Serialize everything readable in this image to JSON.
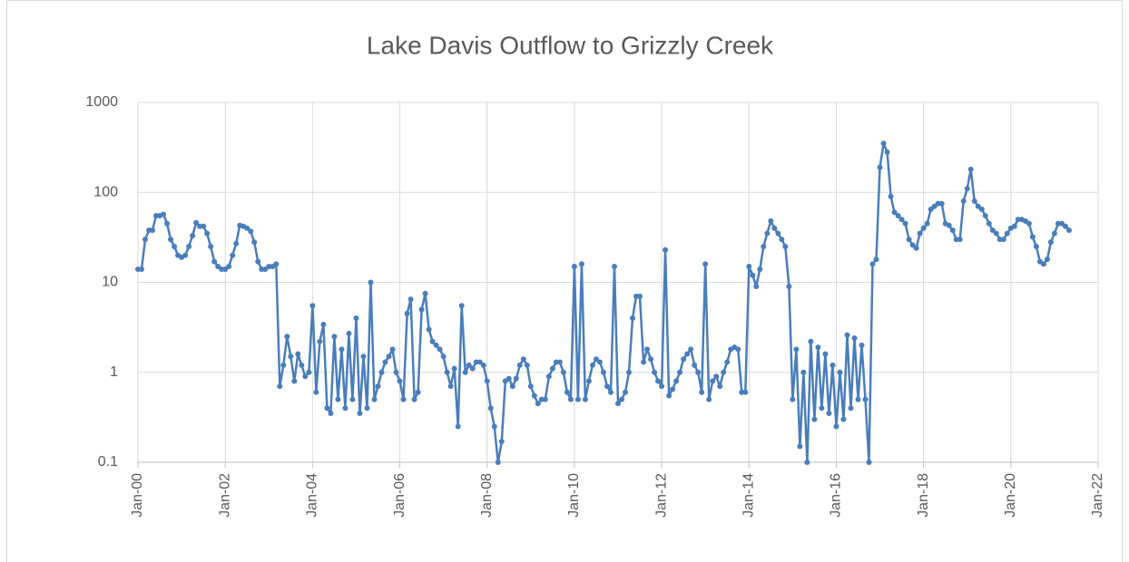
{
  "chart_data": {
    "type": "line",
    "title": "Lake Davis Outflow to Grizzly Creek",
    "log_scale": true,
    "grid": true,
    "color": "#4a7ebb",
    "xlim": [
      "2000-01",
      "2022-01"
    ],
    "xticks": [
      {
        "value": "2000-01",
        "label": "Jan-00"
      },
      {
        "value": "2002-01",
        "label": "Jan-02"
      },
      {
        "value": "2004-01",
        "label": "Jan-04"
      },
      {
        "value": "2006-01",
        "label": "Jan-06"
      },
      {
        "value": "2008-01",
        "label": "Jan-08"
      },
      {
        "value": "2010-01",
        "label": "Jan-10"
      },
      {
        "value": "2012-01",
        "label": "Jan-12"
      },
      {
        "value": "2014-01",
        "label": "Jan-14"
      },
      {
        "value": "2016-01",
        "label": "Jan-16"
      },
      {
        "value": "2018-01",
        "label": "Jan-18"
      },
      {
        "value": "2020-01",
        "label": "Jan-20"
      },
      {
        "value": "2022-01",
        "label": "Jan-22"
      }
    ],
    "ylim": [
      0.1,
      1000
    ],
    "yticks": [
      0.1,
      1,
      10,
      100,
      1000
    ],
    "x": [
      "2000-01",
      "2000-02",
      "2000-03",
      "2000-04",
      "2000-05",
      "2000-06",
      "2000-07",
      "2000-08",
      "2000-09",
      "2000-10",
      "2000-11",
      "2000-12",
      "2001-01",
      "2001-02",
      "2001-03",
      "2001-04",
      "2001-05",
      "2001-06",
      "2001-07",
      "2001-08",
      "2001-09",
      "2001-10",
      "2001-11",
      "2001-12",
      "2002-01",
      "2002-02",
      "2002-03",
      "2002-04",
      "2002-05",
      "2002-06",
      "2002-07",
      "2002-08",
      "2002-09",
      "2002-10",
      "2002-11",
      "2002-12",
      "2003-01",
      "2003-02",
      "2003-03",
      "2003-04",
      "2003-05",
      "2003-06",
      "2003-07",
      "2003-08",
      "2003-09",
      "2003-10",
      "2003-11",
      "2003-12",
      "2004-01",
      "2004-02",
      "2004-03",
      "2004-04",
      "2004-05",
      "2004-06",
      "2004-07",
      "2004-08",
      "2004-09",
      "2004-10",
      "2004-11",
      "2004-12",
      "2005-01",
      "2005-02",
      "2005-03",
      "2005-04",
      "2005-05",
      "2005-06",
      "2005-07",
      "2005-08",
      "2005-09",
      "2005-10",
      "2005-11",
      "2005-12",
      "2006-01",
      "2006-02",
      "2006-03",
      "2006-04",
      "2006-05",
      "2006-06",
      "2006-07",
      "2006-08",
      "2006-09",
      "2006-10",
      "2006-11",
      "2006-12",
      "2007-01",
      "2007-02",
      "2007-03",
      "2007-04",
      "2007-05",
      "2007-06",
      "2007-07",
      "2007-08",
      "2007-09",
      "2007-10",
      "2007-11",
      "2007-12",
      "2008-01",
      "2008-02",
      "2008-03",
      "2008-04",
      "2008-05",
      "2008-06",
      "2008-07",
      "2008-08",
      "2008-09",
      "2008-10",
      "2008-11",
      "2008-12",
      "2009-01",
      "2009-02",
      "2009-03",
      "2009-04",
      "2009-05",
      "2009-06",
      "2009-07",
      "2009-08",
      "2009-09",
      "2009-10",
      "2009-11",
      "2009-12",
      "2010-01",
      "2010-02",
      "2010-03",
      "2010-04",
      "2010-05",
      "2010-06",
      "2010-07",
      "2010-08",
      "2010-09",
      "2010-10",
      "2010-11",
      "2010-12",
      "2011-01",
      "2011-02",
      "2011-03",
      "2011-04",
      "2011-05",
      "2011-06",
      "2011-07",
      "2011-08",
      "2011-09",
      "2011-10",
      "2011-11",
      "2011-12",
      "2012-01",
      "2012-02",
      "2012-03",
      "2012-04",
      "2012-05",
      "2012-06",
      "2012-07",
      "2012-08",
      "2012-09",
      "2012-10",
      "2012-11",
      "2012-12",
      "2013-01",
      "2013-02",
      "2013-03",
      "2013-04",
      "2013-05",
      "2013-06",
      "2013-07",
      "2013-08",
      "2013-09",
      "2013-10",
      "2013-11",
      "2013-12",
      "2014-01",
      "2014-02",
      "2014-03",
      "2014-04",
      "2014-05",
      "2014-06",
      "2014-07",
      "2014-08",
      "2014-09",
      "2014-10",
      "2014-11",
      "2014-12",
      "2015-01",
      "2015-02",
      "2015-03",
      "2015-04",
      "2015-05",
      "2015-06",
      "2015-07",
      "2015-08",
      "2015-09",
      "2015-10",
      "2015-11",
      "2015-12",
      "2016-01",
      "2016-02",
      "2016-03",
      "2016-04",
      "2016-05",
      "2016-06",
      "2016-07",
      "2016-08",
      "2016-09",
      "2016-10",
      "2016-11",
      "2016-12",
      "2017-01",
      "2017-02",
      "2017-03",
      "2017-04",
      "2017-05",
      "2017-06",
      "2017-07",
      "2017-08",
      "2017-09",
      "2017-10",
      "2017-11",
      "2017-12",
      "2018-01",
      "2018-02",
      "2018-03",
      "2018-04",
      "2018-05",
      "2018-06",
      "2018-07",
      "2018-08",
      "2018-09",
      "2018-10",
      "2018-11",
      "2018-12",
      "2019-01",
      "2019-02",
      "2019-03",
      "2019-04",
      "2019-05",
      "2019-06",
      "2019-07",
      "2019-08",
      "2019-09",
      "2019-10",
      "2019-11",
      "2019-12",
      "2020-01",
      "2020-02",
      "2020-03",
      "2020-04",
      "2020-05",
      "2020-06",
      "2020-07",
      "2020-08",
      "2020-09",
      "2020-10",
      "2020-11",
      "2020-12",
      "2021-01",
      "2021-02",
      "2021-03",
      "2021-04",
      "2021-05"
    ],
    "values": [
      14,
      14,
      30,
      38,
      38,
      55,
      55,
      57,
      45,
      30,
      25,
      20,
      19,
      20,
      25,
      33,
      46,
      42,
      42,
      35,
      25,
      17,
      15,
      14,
      14,
      15,
      20,
      27,
      43,
      42,
      40,
      37,
      28,
      17,
      14,
      14,
      15,
      15,
      16,
      0.7,
      1.2,
      2.5,
      1.5,
      0.8,
      1.6,
      1.2,
      0.9,
      1.0,
      5.5,
      0.6,
      2.2,
      3.4,
      0.4,
      0.35,
      2.5,
      0.5,
      1.8,
      0.4,
      2.7,
      0.5,
      4,
      0.35,
      1.5,
      0.4,
      10,
      0.5,
      0.7,
      1.0,
      1.3,
      1.5,
      1.8,
      1.0,
      0.8,
      0.5,
      4.5,
      6.5,
      0.5,
      0.6,
      5,
      7.5,
      3,
      2.2,
      2,
      1.8,
      1.5,
      1.0,
      0.7,
      1.1,
      0.25,
      5.5,
      1.0,
      1.2,
      1.1,
      1.3,
      1.3,
      1.2,
      0.8,
      0.4,
      0.25,
      0.1,
      0.17,
      0.8,
      0.85,
      0.7,
      0.85,
      1.2,
      1.4,
      1.2,
      0.7,
      0.55,
      0.45,
      0.5,
      0.5,
      0.9,
      1.1,
      1.3,
      1.3,
      1.0,
      0.6,
      0.5,
      15,
      0.5,
      16,
      0.5,
      0.8,
      1.2,
      1.4,
      1.3,
      1.0,
      0.7,
      0.6,
      15,
      0.45,
      0.5,
      0.6,
      1.0,
      4,
      7,
      7,
      1.3,
      1.8,
      1.4,
      1.0,
      0.8,
      0.7,
      23,
      0.55,
      0.65,
      0.8,
      1.0,
      1.4,
      1.6,
      1.8,
      1.2,
      1.0,
      0.6,
      16,
      0.5,
      0.8,
      0.9,
      0.7,
      1.0,
      1.3,
      1.8,
      1.9,
      1.8,
      0.6,
      0.6,
      15,
      12,
      9,
      14,
      25,
      35,
      48,
      40,
      35,
      30,
      25,
      9,
      0.5,
      1.8,
      0.15,
      1.0,
      0.1,
      2.2,
      0.3,
      1.9,
      0.4,
      1.6,
      0.35,
      1.2,
      0.25,
      1.0,
      0.3,
      2.6,
      0.4,
      2.4,
      0.5,
      2.0,
      0.5,
      0.1,
      16,
      18,
      190,
      350,
      280,
      90,
      60,
      55,
      50,
      45,
      30,
      26,
      24,
      35,
      40,
      45,
      65,
      70,
      75,
      75,
      45,
      43,
      38,
      30,
      30,
      80,
      110,
      180,
      80,
      70,
      65,
      55,
      45,
      38,
      35,
      30,
      30,
      35,
      40,
      42,
      50,
      50,
      48,
      45,
      32,
      25,
      17,
      16,
      18,
      28,
      35,
      45,
      45,
      42,
      38
    ]
  }
}
